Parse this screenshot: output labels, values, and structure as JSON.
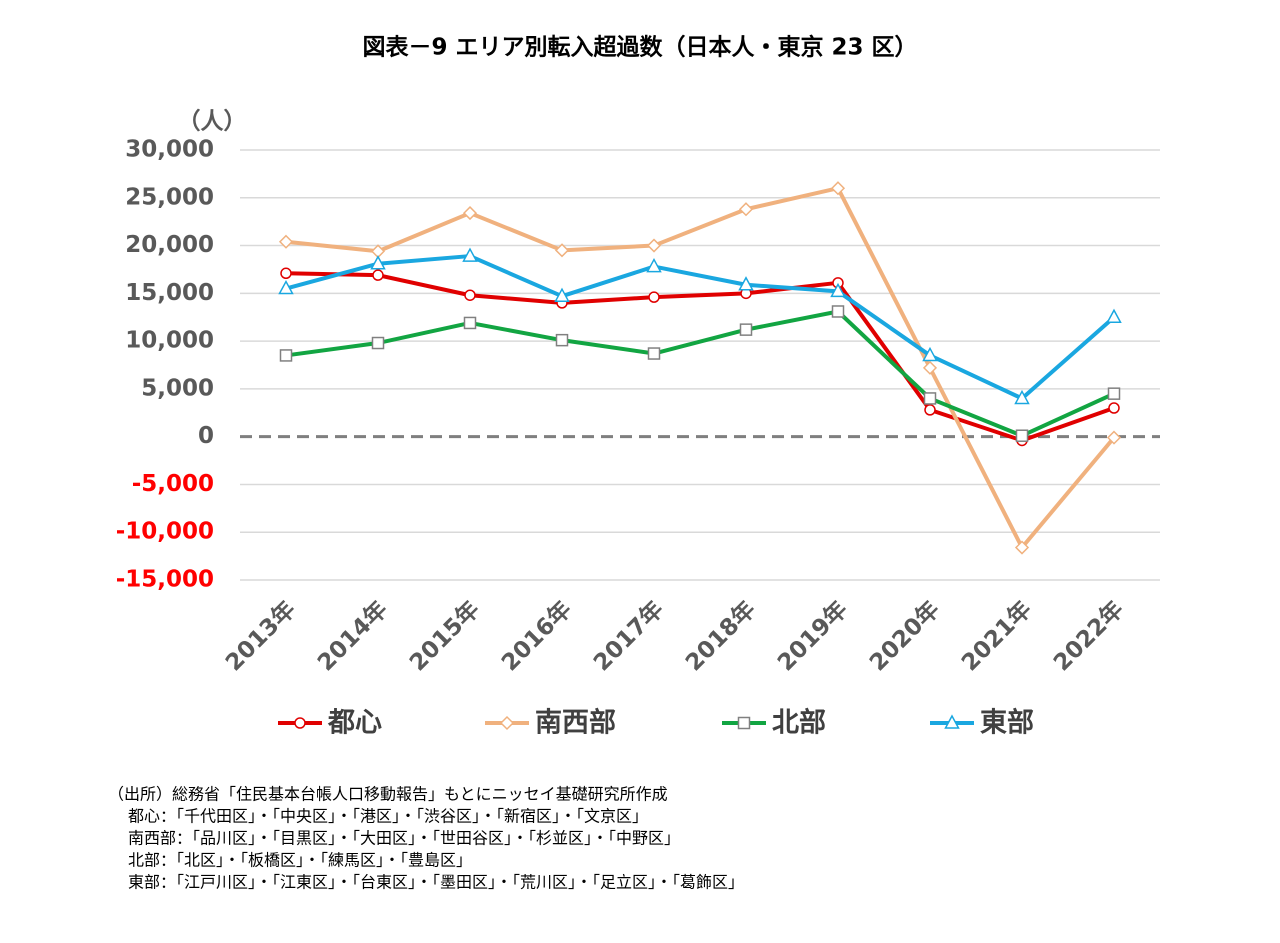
{
  "chart_data": {
    "type": "line",
    "title": "図表－9 エリア別転入超過数（日本人・東京 23 区）",
    "y_unit": "（人）",
    "categories": [
      "2013年",
      "2014年",
      "2015年",
      "2016年",
      "2017年",
      "2018年",
      "2019年",
      "2020年",
      "2021年",
      "2022年"
    ],
    "series": [
      {
        "name": "都心",
        "color": "#e00000",
        "marker": "circle",
        "values": [
          17100,
          16900,
          14800,
          14000,
          14600,
          15000,
          16100,
          2800,
          -400,
          3000
        ]
      },
      {
        "name": "南西部",
        "color": "#f0b17e",
        "marker": "diamond",
        "values": [
          20400,
          19400,
          23400,
          19500,
          20000,
          23800,
          26000,
          7200,
          -11600,
          -100
        ]
      },
      {
        "name": "北部",
        "color": "#12a542",
        "marker": "square",
        "values": [
          8500,
          9800,
          11900,
          10100,
          8700,
          11200,
          13100,
          4000,
          100,
          4500
        ]
      },
      {
        "name": "東部",
        "color": "#1aa7e0",
        "marker": "triangle",
        "values": [
          15500,
          18100,
          18900,
          14700,
          17800,
          15900,
          15200,
          8500,
          4000,
          12500
        ]
      }
    ],
    "ylim": [
      -15000,
      30000
    ],
    "yticks": [
      {
        "value": 30000,
        "label": "30,000"
      },
      {
        "value": 25000,
        "label": "25,000"
      },
      {
        "value": 20000,
        "label": "20,000"
      },
      {
        "value": 15000,
        "label": "15,000"
      },
      {
        "value": 10000,
        "label": "10,000"
      },
      {
        "value": 5000,
        "label": "5,000"
      },
      0,
      {
        "value": -5000,
        "label": "-5,000"
      },
      {
        "value": -10000,
        "label": "-10,000"
      },
      {
        "value": -15000,
        "label": "-15,000"
      }
    ],
    "negative_tick_color": "#ff0000",
    "grid": true,
    "legend": "bottom",
    "notes": [
      "（出所）総務省「住民基本台帳人口移動報告」もとにニッセイ基礎研究所作成",
      "都心：「千代田区」・「中央区」・「港区」・「渋谷区」・「新宿区」・「文京区」",
      "南西部：「品川区」・「目黒区」・「大田区」・「世田谷区」・「杉並区」・「中野区」",
      "北部：「北区」・「板橋区」・「練馬区」・「豊島区」",
      "東部：「江戸川区」・「江東区」・「台東区」・「墨田区」・「荒川区」・「足立区」・「葛飾区」"
    ]
  }
}
